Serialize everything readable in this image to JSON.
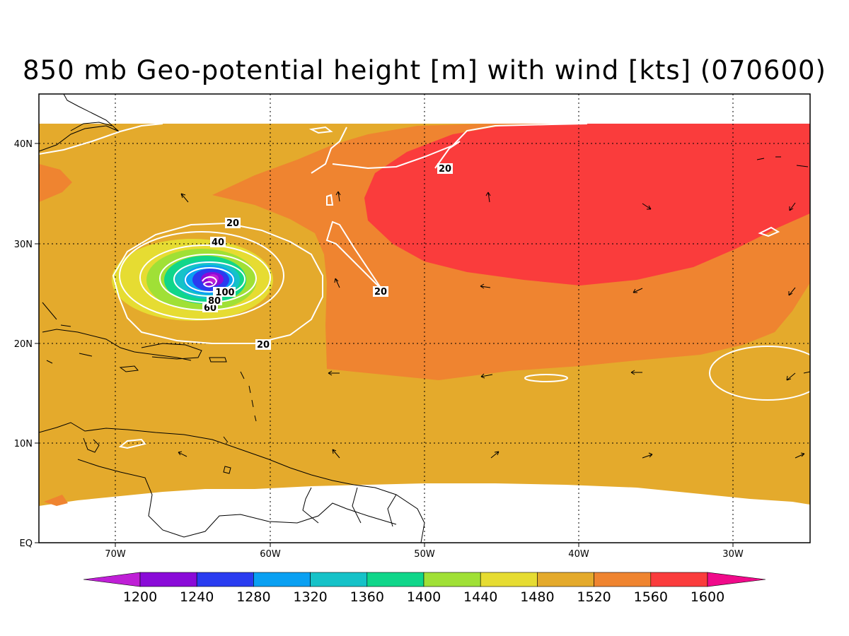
{
  "title": "850 mb Geo-potential height [m] with wind [kts] (070600)",
  "axes": {
    "lat_labels": [
      "40N",
      "30N",
      "20N",
      "10N",
      "EQ"
    ],
    "lon_labels": [
      "70W",
      "60W",
      "50W",
      "40W",
      "30W"
    ],
    "lat_range": [
      0,
      45
    ],
    "lon_range": [
      -75,
      -25
    ]
  },
  "colorbar": {
    "labels": [
      "1200",
      "1240",
      "1280",
      "1320",
      "1360",
      "1400",
      "1440",
      "1480",
      "1520",
      "1560",
      "1600"
    ],
    "colors": [
      "#bf1fd6",
      "#8a0bd8",
      "#2a3cf0",
      "#0aa0f2",
      "#16c2c8",
      "#10d68a",
      "#a0e036",
      "#e6dc32",
      "#e4aa2c",
      "#ef8430",
      "#fa3c3c",
      "#f00a8a"
    ]
  },
  "wind_contour_labels": [
    "20",
    "20",
    "20",
    "20",
    "40",
    "60",
    "80",
    "100"
  ],
  "colors": {
    "hgt_1480_1520": "#e4aa2c",
    "hgt_1520_1560": "#ef8430",
    "hgt_1560_1600": "#fa3c3c",
    "contour_line": "#ffffff",
    "coastline": "#000000"
  }
}
